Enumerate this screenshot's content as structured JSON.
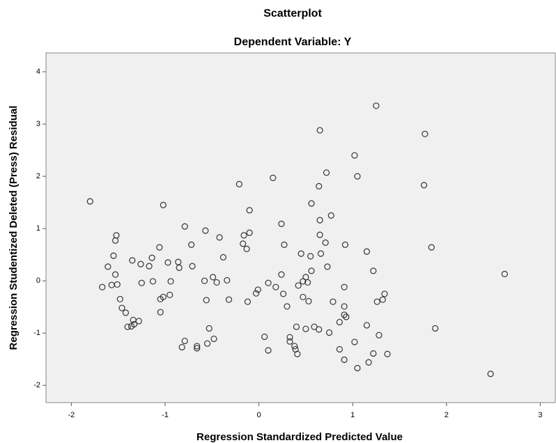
{
  "chart_data": {
    "type": "scatter",
    "title": "Scatterplot",
    "subtitle": "Dependent Variable: Y",
    "x_label": "Regression Standardized Predicted Value",
    "y_label": "Regression Studentized Deleted (Press) Residual",
    "color": "#333333",
    "xlim": [
      -2.27,
      3.16
    ],
    "ylim": [
      -2.33,
      4.36
    ],
    "xticks": [
      -2,
      -1,
      0,
      1,
      2,
      3
    ],
    "yticks": [
      -2,
      -1,
      0,
      1,
      2,
      3,
      4
    ],
    "x": [
      -1.8,
      -1.02,
      1.25,
      0.65,
      1.77,
      1.02,
      0.72,
      0.15,
      -0.21,
      1.05,
      0.64,
      1.76,
      0.56,
      -0.1,
      0.77,
      0.65,
      0.24,
      -0.79,
      -0.57,
      -0.1,
      -0.16,
      0.65,
      -1.52,
      -1.53,
      -0.42,
      -0.72,
      -0.17,
      0.27,
      0.71,
      0.92,
      1.84,
      -1.06,
      -0.13,
      -1.55,
      -1.14,
      -1.35,
      1.15,
      0.66,
      0.45,
      0.55,
      -0.38,
      -0.86,
      -0.97,
      -1.26,
      -1.17,
      -1.61,
      -0.85,
      -0.71,
      0.73,
      -1.53,
      0.56,
      1.22,
      0.24,
      -0.49,
      -1.67,
      -1.57,
      -1.51,
      -1.25,
      -1.13,
      -0.94,
      -0.58,
      -0.45,
      -0.34,
      0.1,
      0.18,
      0.5,
      0.47,
      0.42,
      0.52,
      0.91,
      -0.01,
      -0.03,
      0.26,
      1.34,
      1.26,
      1.32,
      -1.02,
      -0.95,
      -1.05,
      -1.48,
      -0.56,
      -0.32,
      -0.12,
      0.47,
      0.53,
      0.79,
      0.3,
      0.91,
      0.91,
      0.93,
      -1.46,
      -1.05,
      -1.42,
      -1.34,
      -1.28,
      -1.33,
      -1.36,
      -1.4,
      0.86,
      1.15,
      -0.53,
      0.4,
      0.5,
      0.59,
      0.64,
      1.88,
      0.75,
      0.06,
      0.33,
      0.33,
      -0.48,
      -0.79,
      -0.82,
      -0.66,
      -0.66,
      -0.55,
      1.02,
      1.28,
      0.38,
      0.39,
      0.86,
      0.1,
      0.41,
      1.22,
      1.37,
      0.91,
      1.17,
      1.05,
      2.47,
      2.62
    ],
    "values": [
      1.52,
      1.45,
      3.35,
      2.88,
      2.81,
      2.4,
      2.07,
      1.97,
      1.85,
      2.0,
      1.81,
      1.83,
      1.48,
      1.35,
      1.25,
      1.16,
      1.09,
      1.04,
      0.96,
      0.92,
      0.87,
      0.88,
      0.87,
      0.77,
      0.83,
      0.69,
      0.71,
      0.69,
      0.73,
      0.69,
      0.64,
      0.64,
      0.61,
      0.48,
      0.44,
      0.39,
      0.56,
      0.52,
      0.52,
      0.47,
      0.45,
      0.36,
      0.35,
      0.32,
      0.28,
      0.27,
      0.25,
      0.28,
      0.27,
      0.12,
      0.19,
      0.19,
      0.12,
      0.07,
      -0.12,
      -0.08,
      -0.07,
      -0.04,
      -0.01,
      -0.01,
      0.0,
      -0.03,
      0.01,
      -0.04,
      -0.12,
      0.07,
      -0.01,
      -0.09,
      -0.03,
      -0.12,
      -0.17,
      -0.24,
      -0.25,
      -0.25,
      -0.4,
      -0.36,
      -0.31,
      -0.27,
      -0.35,
      -0.35,
      -0.37,
      -0.36,
      -0.4,
      -0.31,
      -0.39,
      -0.4,
      -0.49,
      -0.49,
      -0.65,
      -0.69,
      -0.52,
      -0.6,
      -0.61,
      -0.75,
      -0.77,
      -0.83,
      -0.87,
      -0.88,
      -0.79,
      -0.85,
      -0.91,
      -0.88,
      -0.92,
      -0.88,
      -0.93,
      -0.91,
      -0.99,
      -1.07,
      -1.08,
      -1.16,
      -1.11,
      -1.15,
      -1.27,
      -1.25,
      -1.29,
      -1.2,
      -1.17,
      -1.04,
      -1.25,
      -1.31,
      -1.31,
      -1.33,
      -1.4,
      -1.39,
      -1.4,
      -1.51,
      -1.56,
      -1.67,
      -1.78,
      0.13
    ]
  }
}
